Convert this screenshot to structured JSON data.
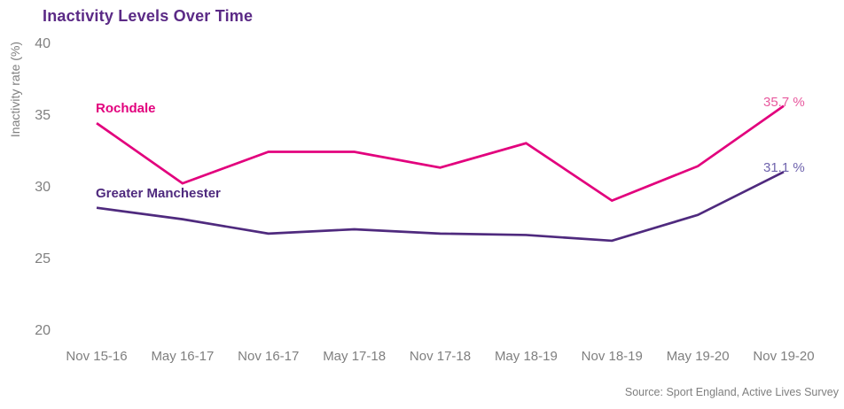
{
  "page": {
    "background": "#ffffff"
  },
  "chart_data": {
    "type": "line",
    "title": "Inactivity Levels Over Time",
    "title_color": "#5b2a86",
    "xlabel": "",
    "ylabel": "Inactivity rate (%)",
    "axis_text_color": "#7f7f7f",
    "grid": false,
    "legend_position": "inline-series-labels",
    "ylim": [
      20,
      40
    ],
    "y_ticks": [
      40,
      35,
      30,
      25,
      20
    ],
    "categories": [
      "Nov 15-16",
      "May 16-17",
      "Nov 16-17",
      "May 17-18",
      "Nov 17-18",
      "May 18-19",
      "Nov 18-19",
      "May 19-20",
      "Nov 19-20"
    ],
    "series": [
      {
        "name": "Rochdale",
        "color": "#e2007d",
        "values": [
          34.5,
          30.3,
          32.5,
          32.5,
          31.4,
          33.1,
          29.1,
          31.5,
          35.7
        ],
        "value_label": "35.7 %",
        "value_label_color": "#e8599e"
      },
      {
        "name": "Greater Manchester",
        "color": "#4f2a7e",
        "values": [
          28.6,
          27.8,
          26.8,
          27.1,
          26.8,
          26.7,
          26.3,
          28.1,
          31.1
        ],
        "value_label": "31.1 %",
        "value_label_color": "#6f63ad"
      }
    ]
  },
  "source_note": "Source: Sport England, Active Lives Survey"
}
